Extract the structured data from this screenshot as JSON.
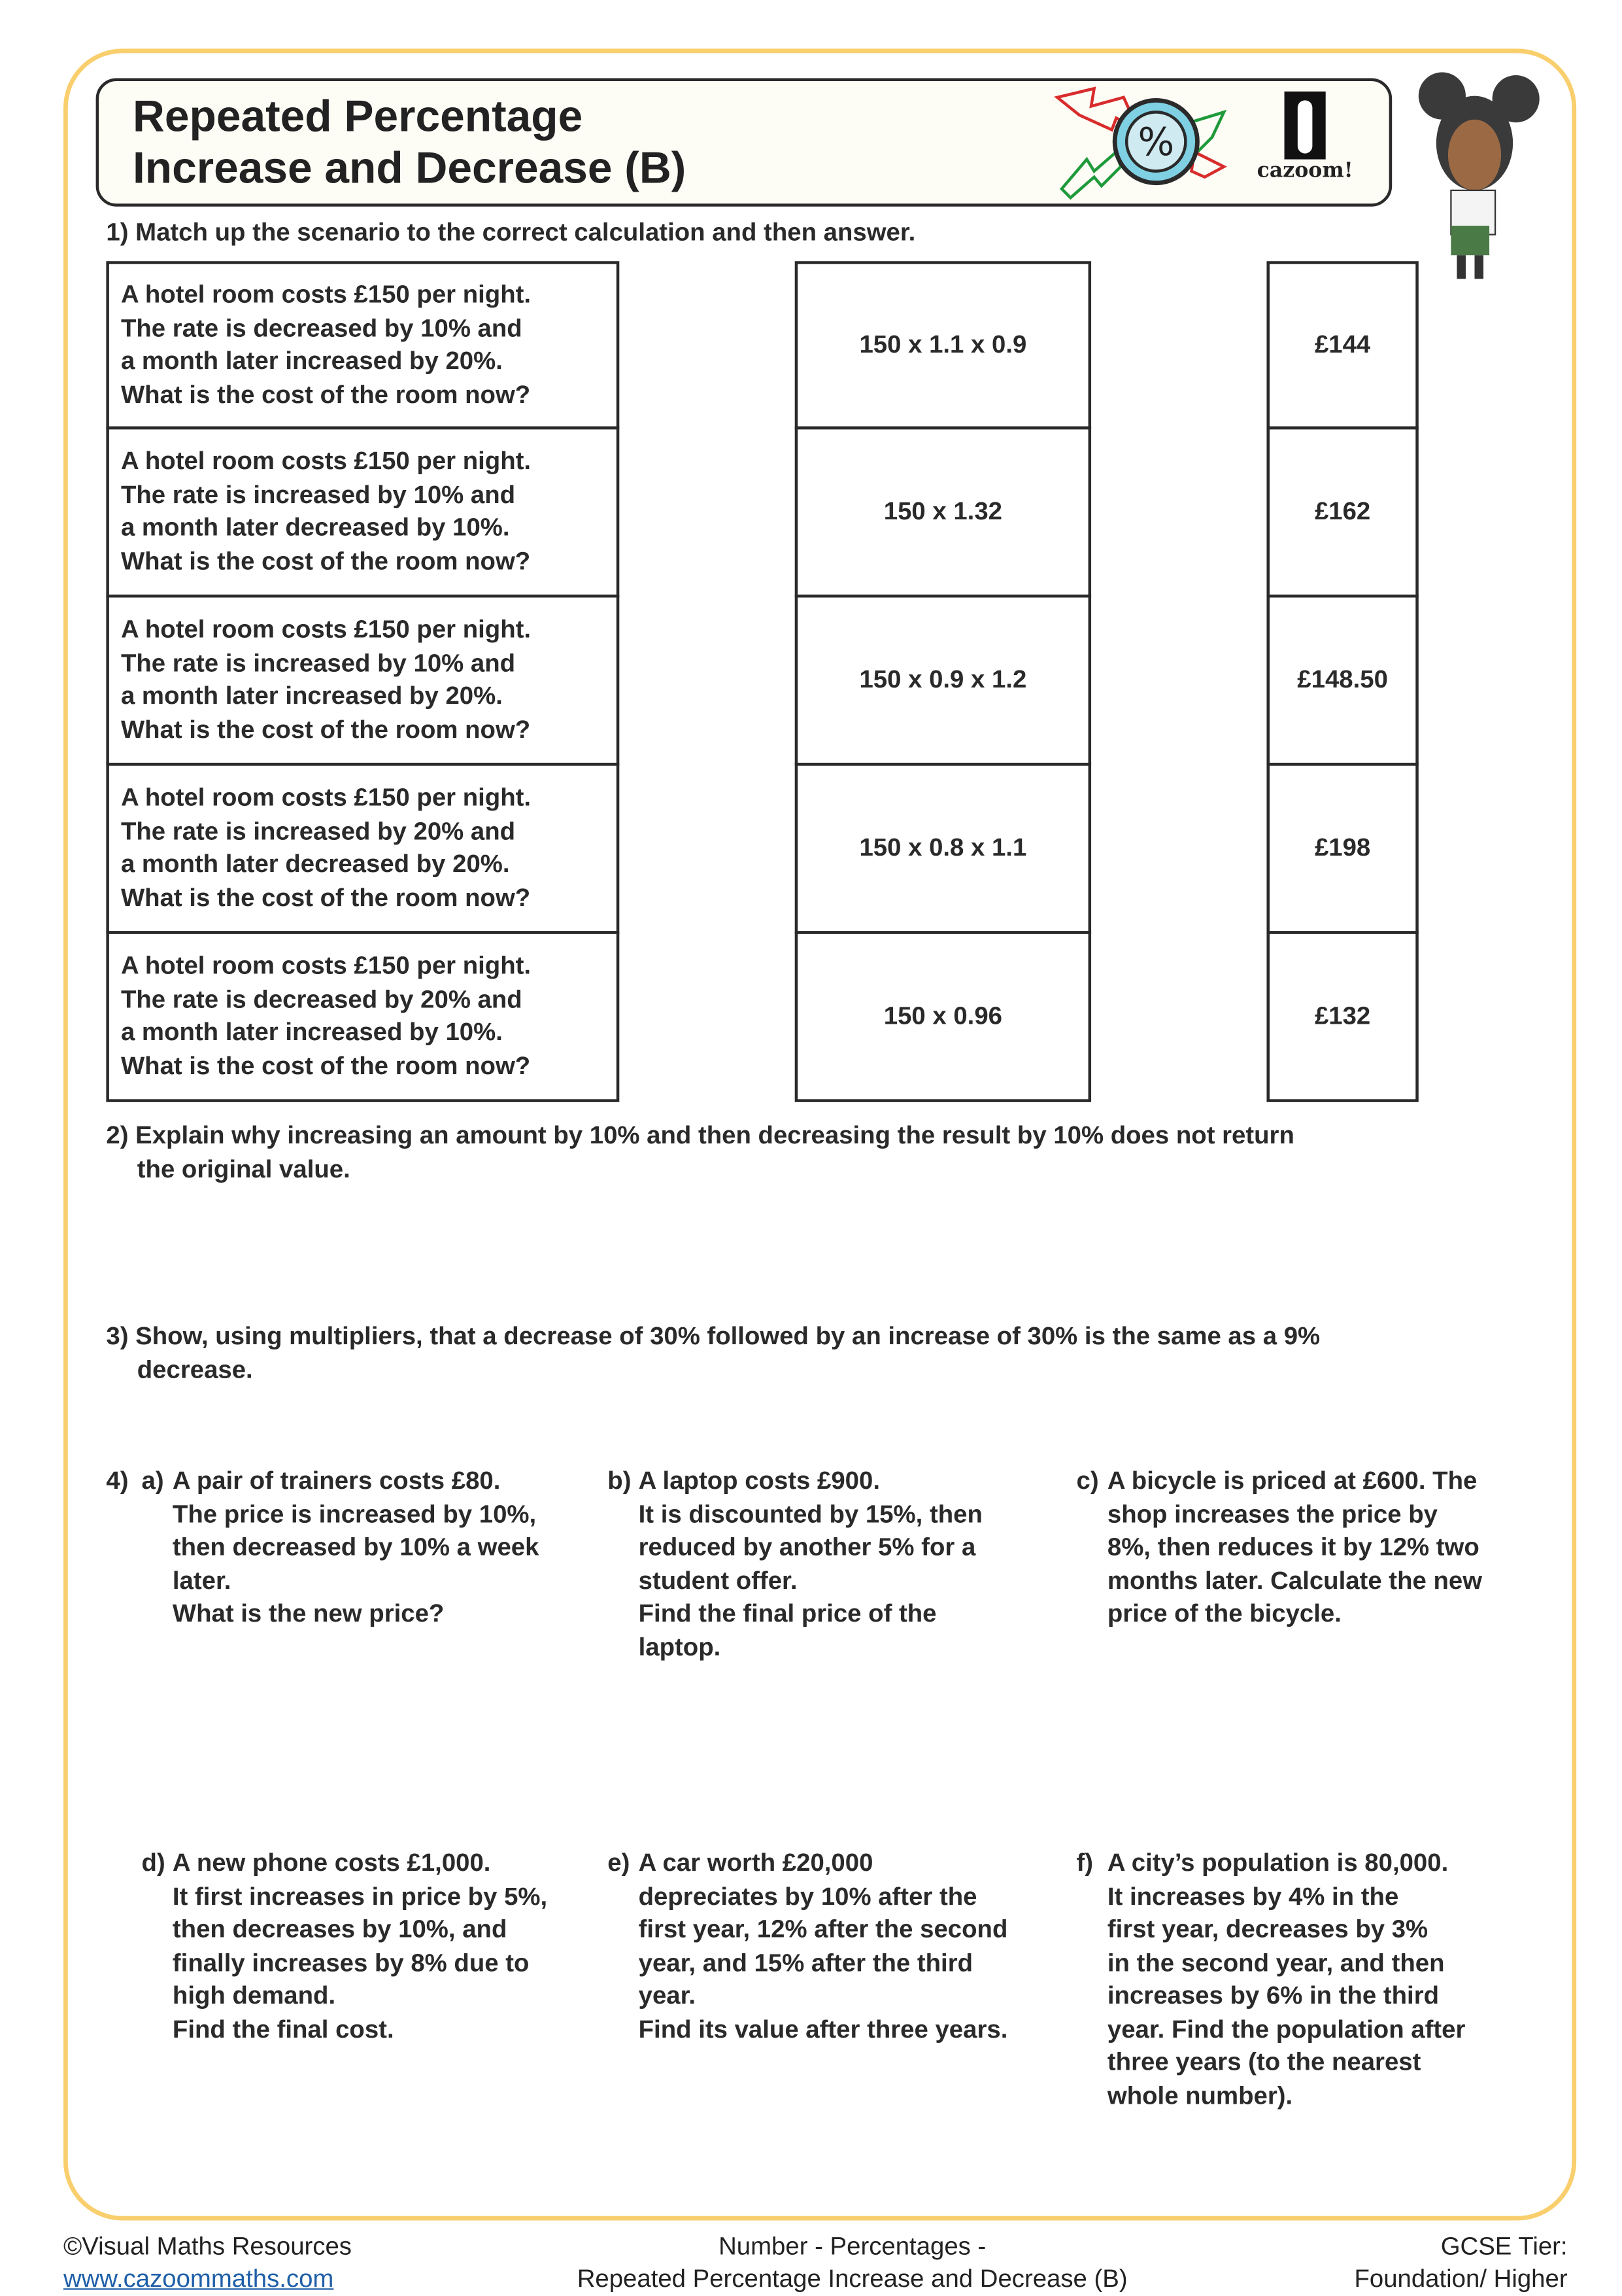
{
  "title": {
    "line1": "Repeated Percentage",
    "line2": "Increase and Decrease (B)"
  },
  "logo": {
    "text": "cazoom!"
  },
  "q1": {
    "prompt": "1) Match up the scenario to the correct calculation and then answer.",
    "scenarios": [
      [
        "A hotel room costs £150 per night.",
        "The rate is decreased by 10% and",
        "a month later increased by 20%.",
        "What is the cost of the room now?"
      ],
      [
        "A hotel room costs £150 per night.",
        "The rate is increased by 10% and",
        "a month later decreased by 10%.",
        "What is the cost of the room now?"
      ],
      [
        "A hotel room costs £150 per night.",
        "The rate is increased by 10% and",
        "a month later increased by 20%.",
        "What is the cost of the room now?"
      ],
      [
        "A hotel room costs £150 per night.",
        "The rate is increased by 20% and",
        "a month later decreased by 20%.",
        "What is the cost of the room now?"
      ],
      [
        "A hotel room costs £150 per night.",
        "The rate is decreased by 20% and",
        "a month later increased by 10%.",
        "What is the cost of the room now?"
      ]
    ],
    "calculations": [
      "150 x 1.1 x 0.9",
      "150 x 1.32",
      "150 x 0.9 x 1.2",
      "150 x 0.8 x 1.1",
      "150 x 0.96"
    ],
    "answers": [
      "£144",
      "£162",
      "£148.50",
      "£198",
      "£132"
    ]
  },
  "q2": {
    "line1": "2) Explain why increasing an amount by 10% and then decreasing the result by 10% does not return",
    "line2": "the original value."
  },
  "q3": {
    "line1": "3) Show, using multipliers, that a decrease of 30% followed by an increase of 30% is the same as a 9%",
    "line2": "decrease."
  },
  "q4": {
    "number": "4)",
    "parts": [
      {
        "label": "a)",
        "lines": [
          "A pair of trainers costs £80.",
          "The price is increased by 10%,",
          "then decreased by 10% a week",
          "later.",
          "What is the new price?"
        ]
      },
      {
        "label": "b)",
        "lines": [
          "A laptop costs £900.",
          "It is discounted by 15%, then",
          "reduced by another 5% for a",
          "student offer.",
          "Find the final price of the",
          "laptop."
        ]
      },
      {
        "label": "c)",
        "lines": [
          "A bicycle is priced at £600. The",
          "shop increases the price by",
          "8%, then reduces it by 12% two",
          "months later. Calculate the new",
          "price of the bicycle."
        ]
      },
      {
        "label": "d)",
        "lines": [
          "A new phone costs £1,000.",
          "It first increases in price by 5%,",
          "then decreases by 10%, and",
          "finally increases by 8% due to",
          "high demand.",
          "Find the final cost."
        ]
      },
      {
        "label": "e)",
        "lines": [
          "A car worth £20,000",
          "depreciates by 10% after the",
          "first year, 12% after the second",
          "year, and 15% after the third",
          "year.",
          "Find its value after three years."
        ]
      },
      {
        "label": "f)",
        "lines": [
          "A city’s population is 80,000.",
          "It increases by 4% in the",
          "first year, decreases by 3%",
          "in the second year, and then",
          "increases by 6% in the third",
          "year. Find the population after",
          "three years (to the nearest",
          "whole number)."
        ]
      }
    ]
  },
  "footer": {
    "copyright": "©Visual Maths Resources",
    "link": "www.cazoommaths.com",
    "topic1": "Number - Percentages -",
    "topic2": "Repeated Percentage Increase and Decrease (B)",
    "tier1": "GCSE Tier:",
    "tier2": "Foundation/ Higher"
  },
  "colors": {
    "frame": "#f9cf6e",
    "title_bg": "#fdfcf5",
    "link": "#1f5fa8"
  }
}
